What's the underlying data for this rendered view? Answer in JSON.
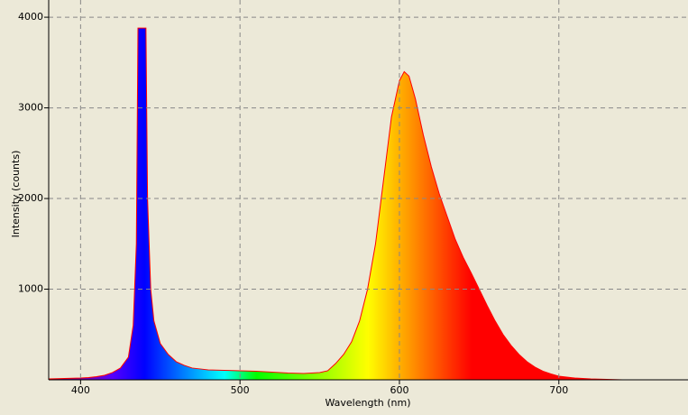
{
  "chart_data": {
    "type": "area",
    "xlabel": "Wavelength (nm)",
    "ylabel": "Intensity (counts)",
    "x": [
      380,
      385,
      390,
      395,
      400,
      405,
      410,
      415,
      420,
      425,
      430,
      433,
      435,
      436,
      438,
      440,
      441,
      442,
      444,
      446,
      450,
      455,
      460,
      465,
      470,
      475,
      480,
      490,
      500,
      510,
      520,
      530,
      540,
      550,
      555,
      560,
      565,
      570,
      575,
      580,
      585,
      590,
      595,
      600,
      603,
      606,
      610,
      615,
      620,
      625,
      630,
      635,
      640,
      645,
      650,
      655,
      660,
      665,
      670,
      675,
      680,
      685,
      690,
      695,
      700,
      710,
      720,
      730,
      740,
      750,
      760,
      770,
      780
    ],
    "values": [
      10,
      12,
      15,
      18,
      20,
      25,
      35,
      50,
      80,
      130,
      250,
      600,
      1500,
      3880,
      3880,
      3880,
      3880,
      2000,
      1000,
      650,
      400,
      280,
      200,
      160,
      130,
      120,
      110,
      105,
      100,
      95,
      85,
      75,
      70,
      80,
      100,
      180,
      280,
      420,
      650,
      1000,
      1500,
      2200,
      2900,
      3300,
      3400,
      3350,
      3100,
      2700,
      2350,
      2050,
      1800,
      1550,
      1350,
      1180,
      1000,
      820,
      650,
      500,
      380,
      280,
      200,
      140,
      95,
      65,
      40,
      20,
      10,
      5,
      0,
      0,
      0,
      0,
      0
    ],
    "color": "#ff0000",
    "xlim": [
      380,
      781
    ],
    "ylim": [
      0,
      4190
    ],
    "xticks": [
      400,
      500,
      600,
      700
    ],
    "yticks": [
      1000,
      2000,
      3000,
      4000
    ],
    "grid": true
  }
}
